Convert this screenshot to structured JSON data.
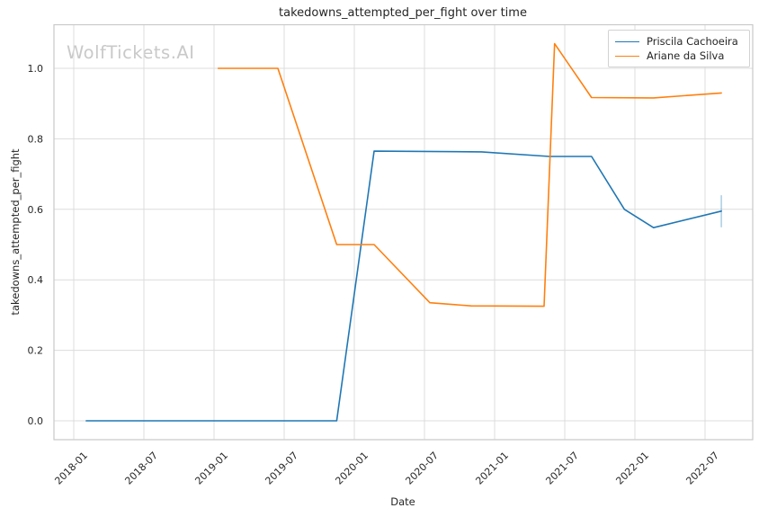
{
  "watermark": {
    "text": "WolfTickets.AI",
    "color": "#c9c9c9"
  },
  "colors": {
    "grid": "#dcdcdc",
    "spine": "#c9c9c9",
    "text": "#262626",
    "background": "#ffffff"
  },
  "chart_data": {
    "type": "line",
    "title": "takedowns_attempted_per_fight over time",
    "xlabel": "Date",
    "ylabel": "takedowns_attempted_per_fight",
    "grid": true,
    "legend_position": "upper right",
    "x_ticks": [
      "2018-01",
      "2018-07",
      "2019-01",
      "2019-07",
      "2020-01",
      "2020-07",
      "2021-01",
      "2021-07",
      "2022-01",
      "2022-07"
    ],
    "y_ticks": [
      {
        "value": 0.0,
        "label": "0.0"
      },
      {
        "value": 0.2,
        "label": "0.2"
      },
      {
        "value": 0.4,
        "label": "0.4"
      },
      {
        "value": 0.6,
        "label": "0.6"
      },
      {
        "value": 0.8,
        "label": "0.8"
      },
      {
        "value": 1.0,
        "label": "1.0"
      }
    ],
    "ylim": [
      -0.054,
      1.124
    ],
    "xlim": [
      "2017-11",
      "2022-11"
    ],
    "series": [
      {
        "name": "Priscila Cachoeira",
        "color": "#1f77b4",
        "points": [
          [
            "2018-02-03",
            0.0
          ],
          [
            "2019-11-16",
            0.0
          ],
          [
            "2020-02-22",
            0.765
          ],
          [
            "2020-11-28",
            0.763
          ],
          [
            "2021-05-22",
            0.75
          ],
          [
            "2021-09-10",
            0.75
          ],
          [
            "2021-12-04",
            0.6
          ],
          [
            "2022-02-19",
            0.548
          ],
          [
            "2022-08-13",
            0.595
          ]
        ]
      },
      {
        "name": "Ariane da Silva",
        "color": "#ff7f0e",
        "points": [
          [
            "2019-01-12",
            1.0
          ],
          [
            "2019-06-15",
            1.0
          ],
          [
            "2019-11-16",
            0.5
          ],
          [
            "2020-02-22",
            0.5
          ],
          [
            "2020-07-15",
            0.335
          ],
          [
            "2020-10-31",
            0.326
          ],
          [
            "2021-05-08",
            0.325
          ],
          [
            "2021-06-05",
            1.07
          ],
          [
            "2021-09-10",
            0.917
          ],
          [
            "2022-02-19",
            0.916
          ],
          [
            "2022-08-13",
            0.93
          ]
        ]
      }
    ],
    "end_marker": {
      "series": "Priscila Cachoeira",
      "date": "2022-08-13",
      "low": 0.549,
      "high": 0.64,
      "color": "rgba(31,119,180,0.35)"
    }
  }
}
